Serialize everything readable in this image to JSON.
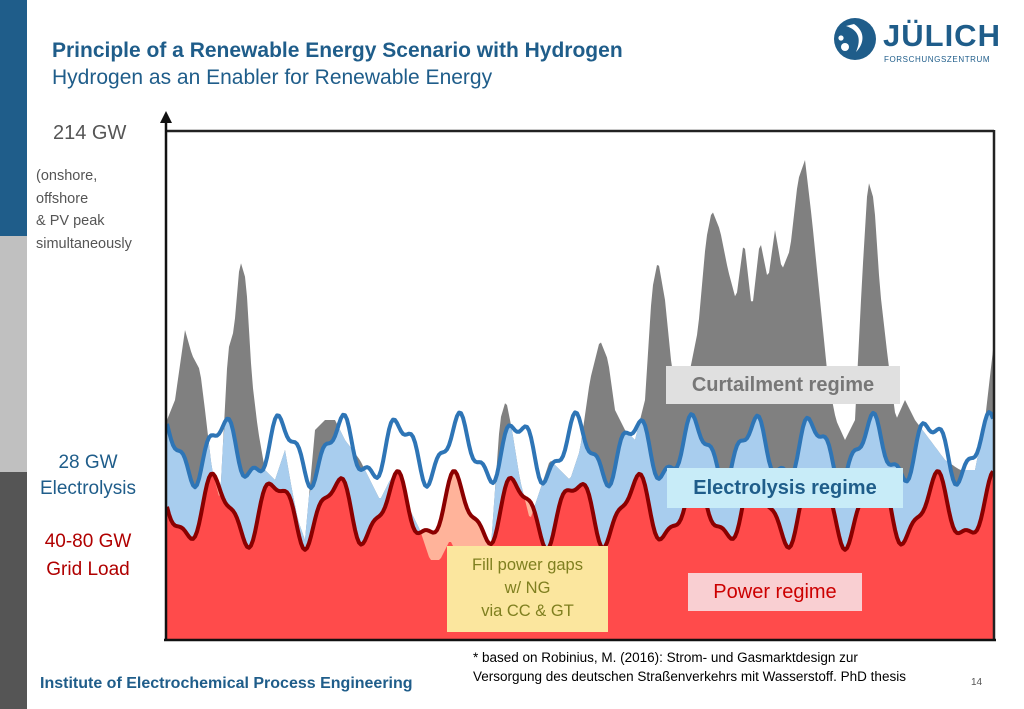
{
  "header": {
    "title": "Principle of a Renewable Energy Scenario with Hydrogen",
    "subtitle": "Hydrogen as an Enabler for Renewable Energy"
  },
  "logo": {
    "name": "JÜLICH",
    "subtitle": "FORSCHUNGSZENTRUM",
    "icon": "juelich-swirl-icon",
    "color": "#1f5d8a"
  },
  "sidebar": {
    "colors": [
      "#1f5d8a",
      "#c0c0c0",
      "#555555"
    ]
  },
  "chart_labels": {
    "y_top": "214 GW",
    "note_lines": [
      "(onshore,",
      "offshore",
      "& PV peak",
      "simultaneously"
    ],
    "electrolysis_lines": [
      "28 GW",
      "Electrolysis"
    ],
    "grid_lines": [
      "40-80 GW",
      "Grid Load"
    ]
  },
  "chart_data": {
    "type": "area",
    "y_top_label": "214 GW",
    "series": [
      {
        "name": "Curtailment regime",
        "color": "#808080"
      },
      {
        "name": "Electrolysis regime",
        "color": "#a8cdee"
      },
      {
        "name": "Power regime",
        "color": "#ff4b4b"
      },
      {
        "name": "Fill power gaps w/ NG via CC & GT",
        "color": "#ffb39a"
      }
    ],
    "colors": {
      "generation": "#808080",
      "electrolysis_fill": "#a8cdee",
      "electrolysis_line": "#2e75b6",
      "grid_fill": "#ff4b4b",
      "gap_fill": "#ffb39a",
      "grid_line": "#8b0000"
    }
  },
  "regimes": {
    "curtailment": "Curtailment regime",
    "electrolysis": "Electrolysis regime",
    "power": "Power regime",
    "fill_lines": [
      "Fill power gaps",
      "w/ NG",
      "via CC & GT"
    ]
  },
  "footer": {
    "institute": "Institute of Electrochemical Process Engineering",
    "footnote_lines": [
      "* based on Robinius, M. (2016): Strom- und Gasmarktdesign zur",
      "Versorgung des deutschen Straßenverkehrs mit Wasserstoff. PhD thesis"
    ],
    "page": "14"
  }
}
